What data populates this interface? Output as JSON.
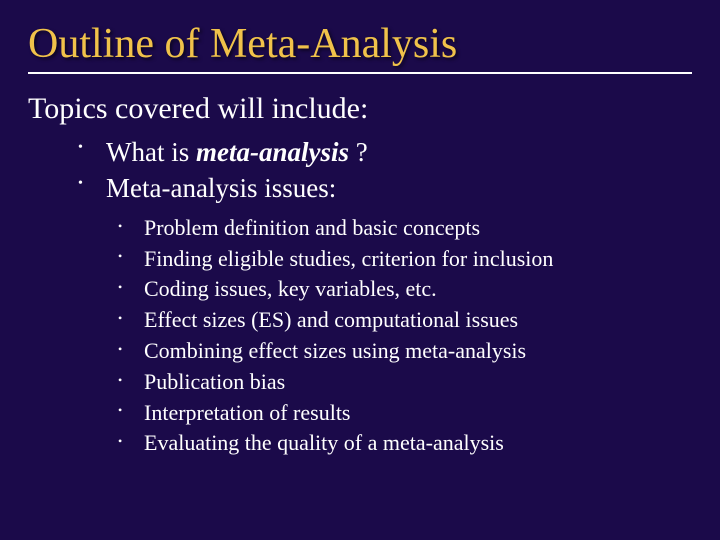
{
  "slide": {
    "background_color": "#1b0a4a",
    "title_color": "#f0c24a",
    "body_color": "#ffffff",
    "underline_color": "#ffffff",
    "underline_width": 2,
    "title": "Outline of Meta-Analysis",
    "title_fontsize": 42,
    "subtitle": "Topics covered will include:",
    "subtitle_fontsize": 30,
    "level1_fontsize": 27,
    "level2_fontsize": 22,
    "level1": [
      {
        "pre": "What is ",
        "em": "meta-analysis",
        "post": " ?"
      },
      {
        "pre": "Meta-analysis issues:",
        "em": "",
        "post": ""
      }
    ],
    "level2": [
      "Problem definition and basic concepts",
      "Finding eligible studies, criterion for inclusion",
      "Coding issues, key variables, etc.",
      "Effect sizes (ES) and computational issues",
      "Combining effect sizes using meta-analysis",
      "Publication bias",
      "Interpretation of results",
      "Evaluating the quality of a meta-analysis"
    ]
  }
}
